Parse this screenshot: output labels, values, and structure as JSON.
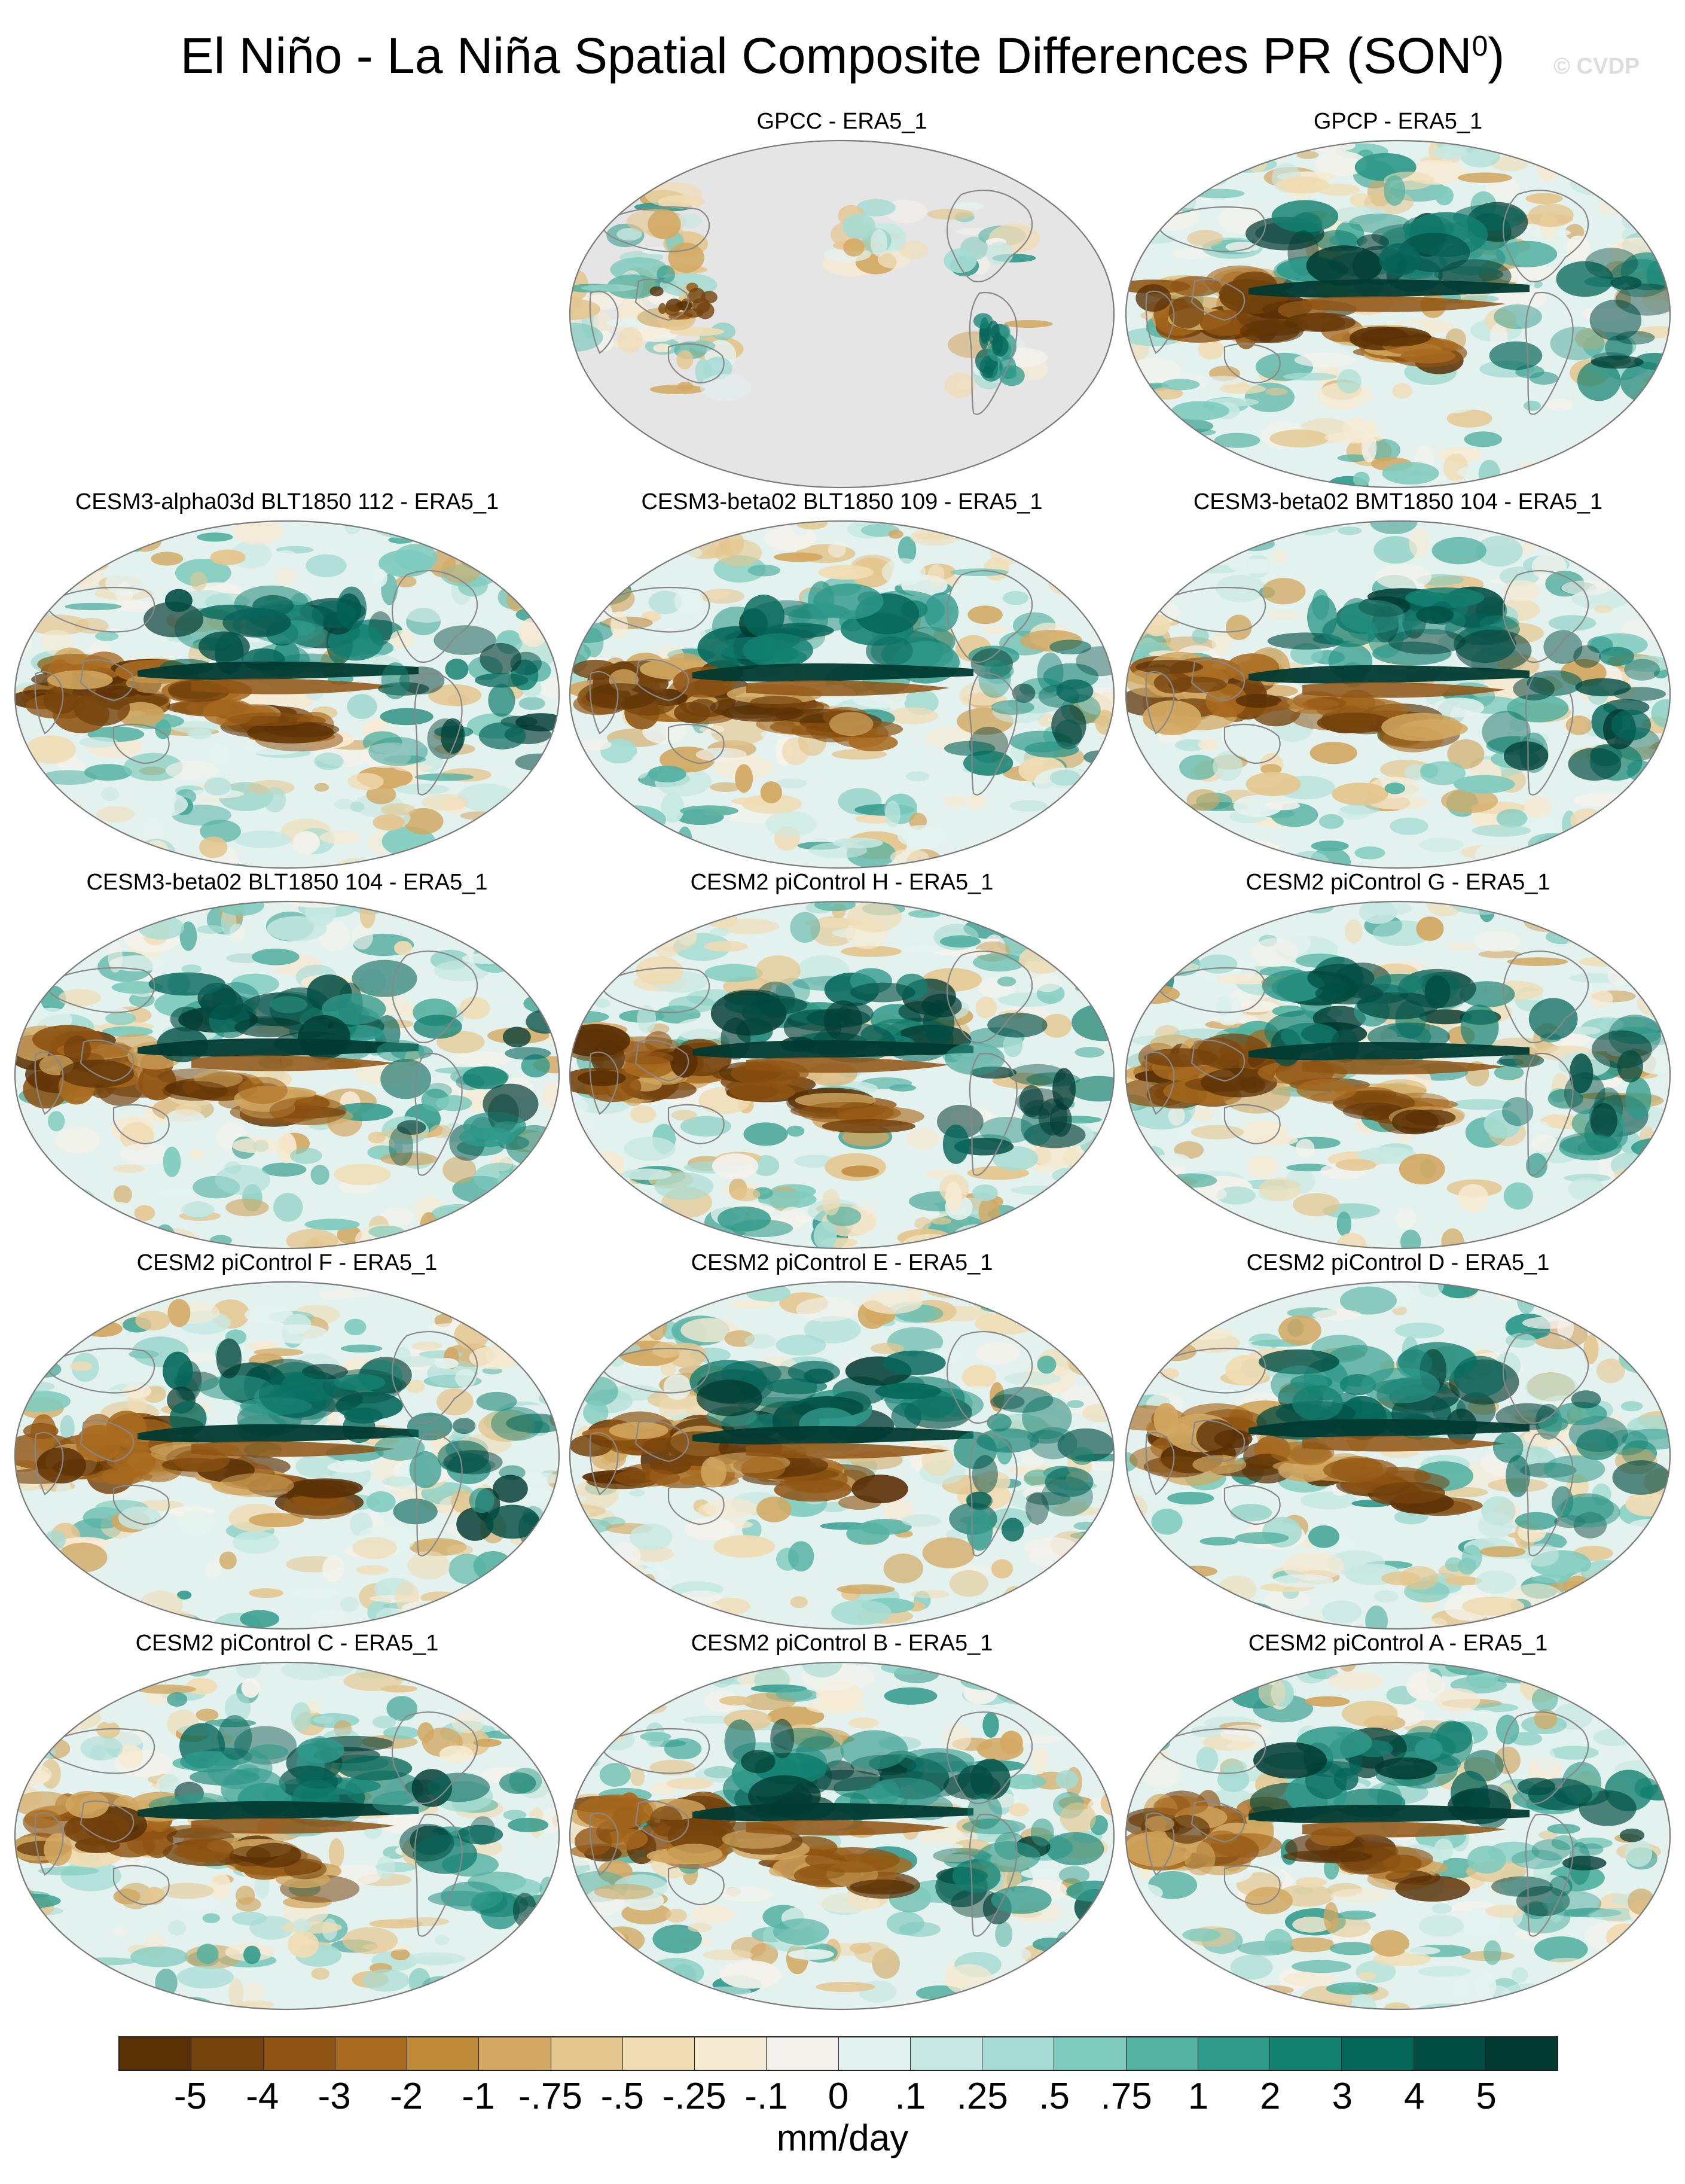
{
  "figure": {
    "title": "El Niño - La Niña Spatial Composite Differences PR (SON",
    "title_superscript": "0",
    "title_close": ")",
    "watermark": "© CVDP"
  },
  "panels": [
    {
      "label": "GPCC - ERA5_1",
      "land_only": true
    },
    {
      "label": "GPCP - ERA5_1",
      "land_only": false
    },
    {
      "label": "CESM3-alpha03d BLT1850 112 - ERA5_1",
      "land_only": false
    },
    {
      "label": "CESM3-beta02 BLT1850 109 - ERA5_1",
      "land_only": false
    },
    {
      "label": "CESM3-beta02 BMT1850 104 - ERA5_1",
      "land_only": false
    },
    {
      "label": "CESM3-beta02 BLT1850 104 - ERA5_1",
      "land_only": false
    },
    {
      "label": "CESM2 piControl H - ERA5_1",
      "land_only": false
    },
    {
      "label": "CESM2 piControl G - ERA5_1",
      "land_only": false
    },
    {
      "label": "CESM2 piControl F - ERA5_1",
      "land_only": false
    },
    {
      "label": "CESM2 piControl E - ERA5_1",
      "land_only": false
    },
    {
      "label": "CESM2 piControl D - ERA5_1",
      "land_only": false
    },
    {
      "label": "CESM2 piControl C - ERA5_1",
      "land_only": false
    },
    {
      "label": "CESM2 piControl B - ERA5_1",
      "land_only": false
    },
    {
      "label": "CESM2 piControl A - ERA5_1",
      "land_only": false
    }
  ],
  "colorbar": {
    "labels": [
      "-5",
      "-4",
      "-3",
      "-2",
      "-1",
      "-.75",
      "-.5",
      "-.25",
      "-.1",
      "0",
      ".1",
      ".25",
      ".5",
      ".75",
      "1",
      "2",
      "3",
      "4",
      "5"
    ],
    "colors": [
      "#5a3005",
      "#74420c",
      "#8f5413",
      "#a86a1f",
      "#bf8a3a",
      "#d2a862",
      "#e4c68e",
      "#f0dcb3",
      "#f6ead2",
      "#f4f2ec",
      "#e4f2ef",
      "#c7e8e2",
      "#a6dcd3",
      "#7fcbbe",
      "#55b2a2",
      "#2f998a",
      "#138070",
      "#05665a",
      "#024d43",
      "#013a31"
    ],
    "units": "mm/day"
  },
  "map_style": {
    "land_mask_color": "#e5e5e5",
    "coastline_color": "#888888"
  }
}
